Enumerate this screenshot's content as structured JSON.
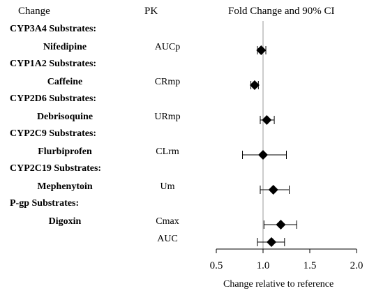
{
  "headers": {
    "change": "Change",
    "pk": "PK",
    "fold": "Fold Change and 90% CI"
  },
  "xlabel": "Change relative to reference",
  "chart_data": {
    "type": "scatter",
    "title": "Fold Change and 90% CI",
    "xlabel": "Change relative to reference",
    "xlim": [
      0.5,
      2.0
    ],
    "xticks": [
      "0.5",
      "1.0",
      "1.5",
      "2.0"
    ],
    "reference_line": 1.0,
    "groups": [
      {
        "category": "CYP3A4 Substrates:",
        "rows": [
          {
            "drug": "Nifedipine",
            "pk": "AUCp",
            "estimate": 0.98,
            "ci": [
              0.94,
              1.03
            ]
          }
        ]
      },
      {
        "category": "CYP1A2 Substrates:",
        "rows": [
          {
            "drug": "Caffeine",
            "pk": "CRmp",
            "estimate": 0.91,
            "ci": [
              0.87,
              0.95
            ]
          }
        ]
      },
      {
        "category": "CYP2D6 Substrates:",
        "rows": [
          {
            "drug": "Debrisoquine",
            "pk": "URmp",
            "estimate": 1.04,
            "ci": [
              0.97,
              1.12
            ]
          }
        ]
      },
      {
        "category": "CYP2C9 Substrates:",
        "rows": [
          {
            "drug": "Flurbiprofen",
            "pk": "CLrm",
            "estimate": 1.0,
            "ci": [
              0.78,
              1.25
            ]
          }
        ]
      },
      {
        "category": "CYP2C19 Substrates:",
        "rows": [
          {
            "drug": "Mephenytoin",
            "pk": "Um",
            "estimate": 1.11,
            "ci": [
              0.97,
              1.28
            ]
          }
        ]
      },
      {
        "category": "P-gp Substrates:",
        "rows": [
          {
            "drug": "Digoxin",
            "pk": "Cmax",
            "estimate": 1.19,
            "ci": [
              1.01,
              1.36
            ]
          },
          {
            "drug": "",
            "pk": "AUC",
            "estimate": 1.09,
            "ci": [
              0.94,
              1.23
            ]
          }
        ]
      }
    ]
  }
}
